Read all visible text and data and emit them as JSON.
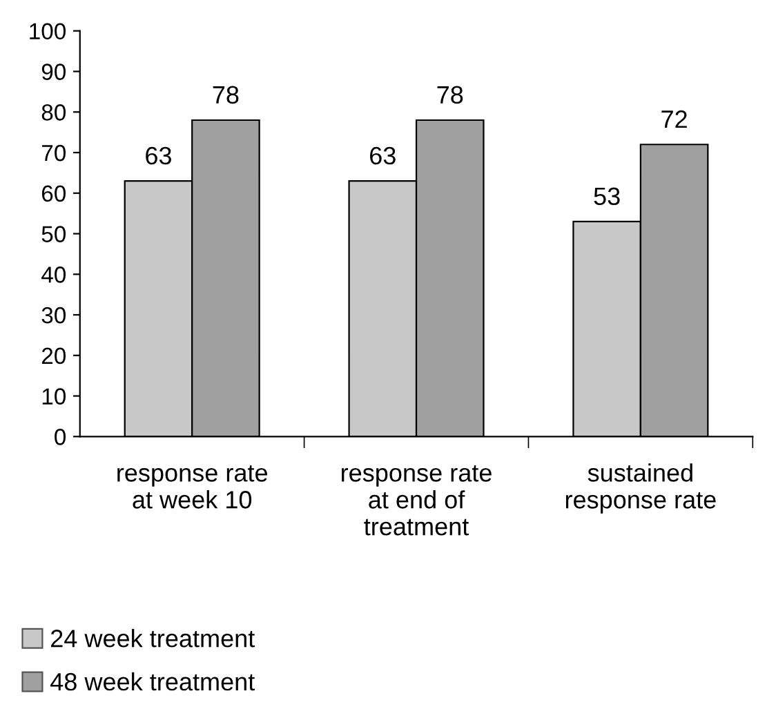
{
  "chart_data": {
    "type": "bar",
    "categories": [
      "response rate\nat week 10",
      "response rate\nat end of\ntreatment",
      "sustained\nresponse rate"
    ],
    "series": [
      {
        "name": "24 week treatment",
        "color": "#c8c8c8",
        "values": [
          63,
          63,
          53
        ]
      },
      {
        "name": "48 week treatment",
        "color": "#a0a0a0",
        "values": [
          78,
          78,
          72
        ]
      }
    ],
    "ylim": [
      0,
      100
    ],
    "yticks": [
      0,
      10,
      20,
      30,
      40,
      50,
      60,
      70,
      80,
      90,
      100
    ],
    "data_labels": true,
    "grid": false,
    "legend": "bottom left"
  }
}
